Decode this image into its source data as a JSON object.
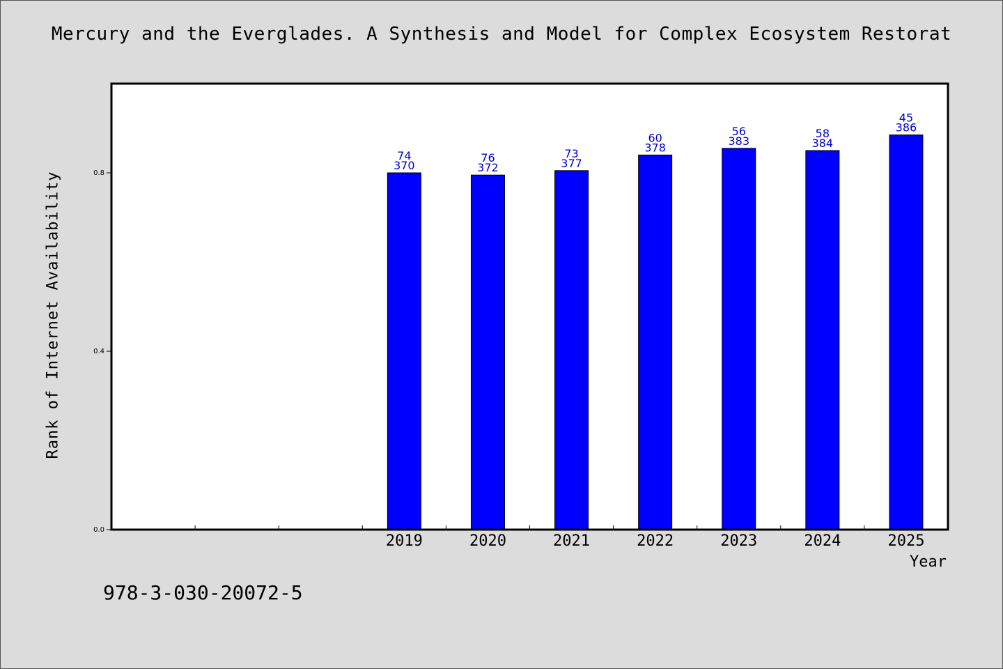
{
  "chart_data": {
    "type": "bar",
    "title": "Mercury and the Everglades. A Synthesis and Model for Complex Ecosystem Restorat",
    "xlabel": "Year",
    "ylabel": "Rank of Internet Availability",
    "categories": [
      "",
      "",
      "",
      "2019",
      "2020",
      "2021",
      "2022",
      "2023",
      "2024",
      "2025"
    ],
    "series": [
      {
        "values": [
          null,
          null,
          null,
          0.8,
          0.795,
          0.805,
          0.84,
          0.855,
          0.85,
          0.885
        ],
        "label_top": [
          "",
          "",
          "",
          "74",
          "76",
          "73",
          "60",
          "56",
          "58",
          "45"
        ],
        "label_bottom": [
          "",
          "",
          "",
          "370",
          "372",
          "377",
          "378",
          "383",
          "384",
          "386"
        ]
      }
    ],
    "yticks": [
      "0.0",
      "0.4",
      "0.8"
    ],
    "ytick_values": [
      0.0,
      0.4,
      0.8
    ],
    "ylim": [
      0,
      1.0
    ],
    "grid": false,
    "colors": {
      "bar": "#0000ff",
      "bar_label": "#0000cc",
      "axis": "#000000"
    }
  },
  "footer": {
    "isbn": "978-3-030-20072-5"
  }
}
